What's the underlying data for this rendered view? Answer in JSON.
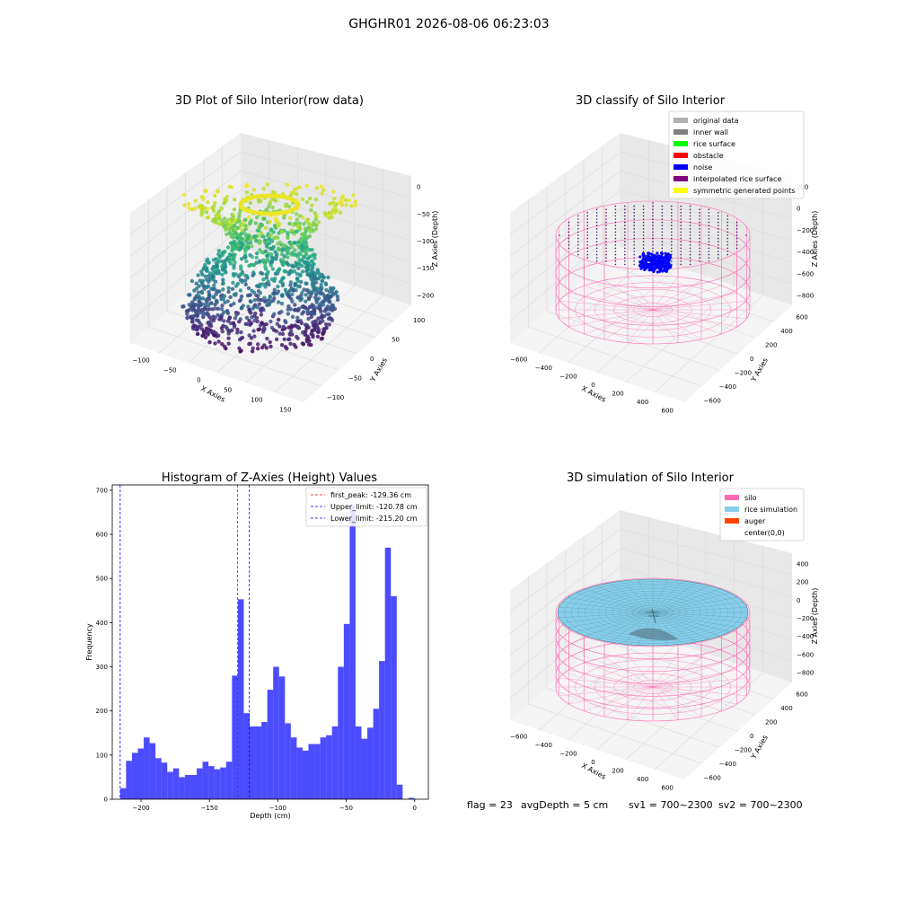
{
  "figure": {
    "suptitle": "GHGHR01 2026-08-06 06:23:03",
    "footer": {
      "flag": "flag = 23",
      "avg_depth": "avgDepth = 5 cm",
      "sv1": "sv1 = 700~2300",
      "sv2": "sv2 = 700~2300"
    }
  },
  "chart_data": [
    {
      "type": "scatter",
      "title": "3D Plot of Silo Interior(row data)",
      "xlabel": "X Axies",
      "ylabel": "Y Axies",
      "zlabel": "Z Axies (Depth)",
      "x_ticks": [
        "−100",
        "−50",
        "0",
        "50",
        "100",
        "150"
      ],
      "y_ticks": [
        "−100",
        "−50",
        "0",
        "50",
        "100"
      ],
      "z_ticks": [
        "0",
        "−50",
        "−100",
        "−150",
        "−200"
      ],
      "colormap": "viridis",
      "zlim": [
        -215,
        0
      ]
    },
    {
      "type": "scatter",
      "title": "3D classify of Silo Interior",
      "xlabel": "X Axies",
      "ylabel": "Y Axies",
      "zlabel": "Z Axies (Depth)",
      "x_ticks": [
        "−600",
        "−400",
        "−200",
        "0",
        "200",
        "400",
        "600"
      ],
      "y_ticks": [
        "−600",
        "−400",
        "−200",
        "0",
        "200",
        "400",
        "600"
      ],
      "z_ticks": [
        "200",
        "0",
        "−200",
        "−400",
        "−600",
        "−800"
      ],
      "legend": [
        {
          "label": "original data",
          "color": "#b0b0b0"
        },
        {
          "label": "inner wall",
          "color": "#808080"
        },
        {
          "label": "rice surface",
          "color": "#00ff00"
        },
        {
          "label": "obstacle",
          "color": "#ff0000"
        },
        {
          "label": "noise",
          "color": "#0000ff"
        },
        {
          "label": "interpolated rice surface",
          "color": "#800080"
        },
        {
          "label": "symmetric generated points",
          "color": "#ffff00"
        }
      ],
      "legend_loc": "upper right"
    },
    {
      "type": "bar",
      "title": "Histogram of Z-Axies (Height) Values",
      "xlabel": "Depth (cm)",
      "ylabel": "Frequency",
      "xlim": [
        -221,
        10
      ],
      "ylim": [
        0,
        712
      ],
      "x_ticks": [
        -200,
        -150,
        -100,
        -50,
        0
      ],
      "y_ticks": [
        0,
        100,
        200,
        300,
        400,
        500,
        600,
        700
      ],
      "bin_width": 4.3,
      "bin_start": -215.2,
      "values": [
        25,
        87,
        105,
        115,
        140,
        127,
        93,
        83,
        62,
        70,
        50,
        55,
        55,
        70,
        85,
        75,
        68,
        72,
        85,
        280,
        453,
        195,
        165,
        165,
        175,
        248,
        300,
        278,
        172,
        140,
        117,
        110,
        125,
        125,
        140,
        145,
        165,
        300,
        397,
        665,
        165,
        137,
        162,
        205,
        313,
        570,
        460,
        33,
        0,
        3
      ],
      "color": "#0000ff",
      "alpha": 0.7,
      "vlines": [
        {
          "label": "first_peak: -129.36 cm",
          "value": -129.36,
          "color": "#ff0000"
        },
        {
          "label": "Upper_limit: -120.78 cm",
          "value": -120.78,
          "color": "#0000ff"
        },
        {
          "label": "Lower_limit: -215.20 cm",
          "value": -215.2,
          "color": "#0000ff"
        }
      ],
      "legend_loc": "upper right"
    },
    {
      "type": "surface",
      "title": "3D simulation of Silo Interior",
      "xlabel": "X Axies",
      "ylabel": "Y Axies",
      "zlabel": "Z Axies (Depth)",
      "x_ticks": [
        "−600",
        "−400",
        "−200",
        "0",
        "200",
        "400",
        "600"
      ],
      "y_ticks": [
        "−600",
        "−400",
        "−200",
        "0",
        "200",
        "400",
        "600"
      ],
      "z_ticks": [
        "400",
        "200",
        "0",
        "−200",
        "−400",
        "−600",
        "−800"
      ],
      "legend": [
        {
          "label": "silo",
          "color": "#ff69b4"
        },
        {
          "label": "rice simulation",
          "color": "#87ceeb"
        },
        {
          "label": "auger",
          "color": "#ff4500"
        },
        {
          "label": "center(0,0)",
          "color": "#ffffff"
        }
      ],
      "legend_loc": "upper right"
    }
  ]
}
